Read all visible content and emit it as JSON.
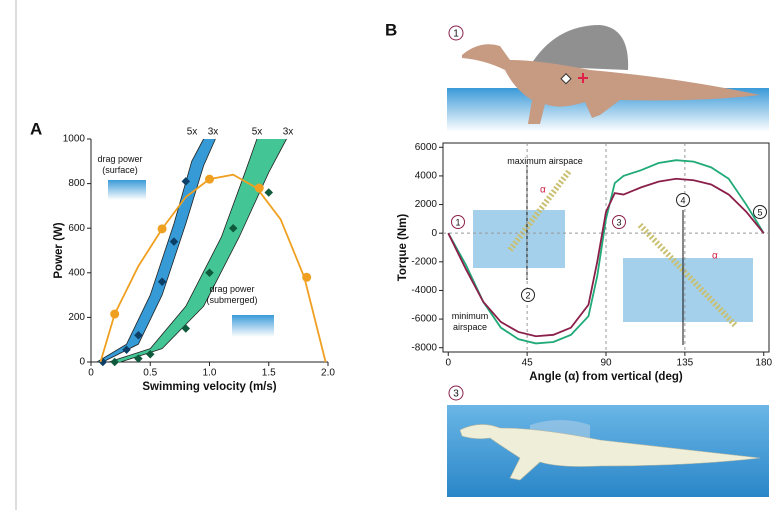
{
  "panels": [
    "A",
    "B"
  ],
  "figure_markers": [
    "1",
    "3"
  ],
  "chart_data": [
    {
      "type": "line",
      "xlabel": "Swimming velocity (m/s)",
      "ylabel": "Power (W)",
      "xlim": [
        0,
        2
      ],
      "ylim": [
        0,
        1000
      ],
      "xticks": [
        0,
        0.5,
        {
          "value": 1,
          "label": "1.0"
        },
        1.5,
        {
          "value": 2,
          "label": "2.0"
        }
      ],
      "yticks": [
        0,
        200,
        400,
        600,
        800,
        1000
      ],
      "frame": false,
      "grid": false,
      "series": [
        {
          "style": "line",
          "color": "#f0a020",
          "x": [
            0.08,
            0.2,
            0.4,
            0.6,
            0.8,
            1.0,
            1.2,
            1.4,
            1.6,
            1.8,
            1.98
          ],
          "values": [
            0,
            215,
            430,
            597,
            740,
            820,
            840,
            780,
            640,
            380,
            0
          ]
        },
        {
          "style": "dots",
          "color": "#f0a020",
          "x": [
            0.2,
            0.6,
            1.0,
            1.42,
            1.82
          ],
          "values": [
            215,
            597,
            820,
            780,
            380
          ]
        }
      ],
      "bands": [
        {
          "color": "#1f8fd0",
          "marker_color": "#0d3f66",
          "edges": [
            {
              "label": "5x",
              "x": [
                0.05,
                0.3,
                0.5,
                0.7,
                0.85,
                0.95
              ],
              "values": [
                0,
                80,
                300,
                620,
                900,
                1000
              ]
            },
            {
              "label": "3x",
              "x": [
                0.1,
                0.4,
                0.6,
                0.8,
                0.95,
                1.05
              ],
              "values": [
                0,
                80,
                300,
                620,
                880,
                1000
              ]
            }
          ],
          "markers": {
            "x": [
              0.1,
              0.3,
              0.4,
              0.6,
              0.7,
              0.8
            ],
            "values": [
              0,
              55,
              120,
              360,
              540,
              810
            ]
          }
        },
        {
          "color": "#2fbf8a",
          "marker_color": "#0f5a3c",
          "edges": [
            {
              "label": "5x",
              "x": [
                0.15,
                0.5,
                0.8,
                1.1,
                1.3,
                1.4
              ],
              "values": [
                0,
                60,
                250,
                560,
                850,
                1000
              ]
            },
            {
              "label": "3x",
              "x": [
                0.25,
                0.6,
                0.95,
                1.25,
                1.5,
                1.65
              ],
              "values": [
                0,
                60,
                250,
                560,
                850,
                1000
              ]
            }
          ],
          "markers": {
            "x": [
              0.2,
              0.4,
              0.5,
              0.8,
              1.0,
              1.2,
              1.5
            ],
            "values": [
              0,
              15,
              35,
              150,
              400,
              600,
              760
            ]
          }
        }
      ],
      "annotations": [
        {
          "lines": [
            "drag power",
            "(surface)"
          ]
        },
        {
          "lines": [
            "drag power",
            "(submerged)"
          ]
        }
      ]
    },
    {
      "type": "line",
      "xlabel": "Angle (α) from vertical (deg)",
      "ylabel": "Torque (Nm)",
      "xlim": [
        -3,
        183
      ],
      "ylim": [
        -8300,
        6300
      ],
      "xticks": [
        0,
        45,
        90,
        135,
        180
      ],
      "yticks": [
        -8000,
        -6000,
        -4000,
        -2000,
        0,
        2000,
        4000,
        6000
      ],
      "frame": true,
      "grid": true,
      "grid_x": [
        45,
        90,
        135
      ],
      "grid_y": [
        0
      ],
      "series": [
        {
          "style": "line",
          "color": "#1faa78",
          "x": [
            0,
            10,
            20,
            30,
            40,
            50,
            60,
            70,
            80,
            85,
            90,
            95,
            100,
            110,
            120,
            130,
            140,
            150,
            160,
            170,
            180
          ],
          "values": [
            0,
            -2200,
            -4800,
            -6600,
            -7400,
            -7700,
            -7600,
            -7100,
            -5800,
            -3000,
            1000,
            3500,
            4000,
            4400,
            4900,
            5100,
            5000,
            4600,
            3800,
            2000,
            0
          ]
        },
        {
          "style": "line",
          "color": "#8a1f4a",
          "x": [
            0,
            10,
            20,
            30,
            40,
            50,
            60,
            70,
            80,
            85,
            90,
            95,
            100,
            110,
            120,
            130,
            140,
            150,
            160,
            170,
            180
          ],
          "values": [
            0,
            -2500,
            -4800,
            -6200,
            -6900,
            -7200,
            -7100,
            -6600,
            -5000,
            -2000,
            1500,
            2800,
            2700,
            3200,
            3600,
            3800,
            3700,
            3400,
            2700,
            1500,
            0
          ]
        }
      ],
      "annotations": [
        {
          "lines": [
            "maximum airspace"
          ]
        },
        {
          "lines": [
            "minimum",
            "airspace"
          ]
        }
      ],
      "circled": [
        "1",
        "2",
        "3",
        "4",
        "5"
      ],
      "angle_symbols": [
        "α",
        "α"
      ]
    }
  ]
}
